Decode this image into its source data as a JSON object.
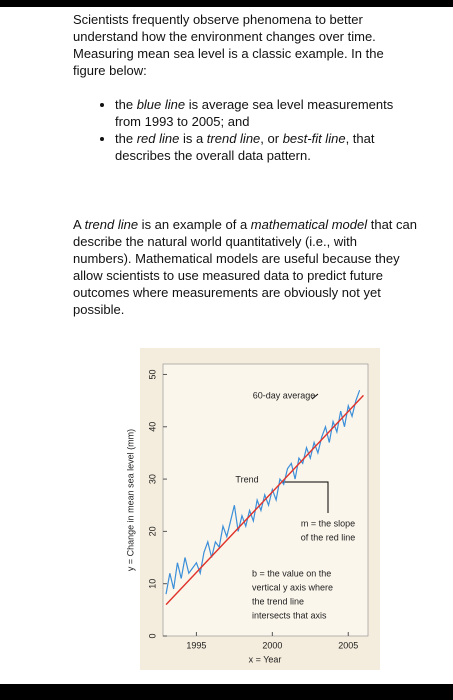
{
  "intro": [
    {
      "text": "Scientists frequently observe phenomena to better understand how the environment changes over time. Measuring mean sea level is a classic example. In the figure below:",
      "italic": false
    }
  ],
  "bullets": [
    [
      {
        "text": "the ",
        "italic": false
      },
      {
        "text": "blue line",
        "italic": true
      },
      {
        "text": " is average sea level measurements from 1993 to 2005; and",
        "italic": false
      }
    ],
    [
      {
        "text": "the ",
        "italic": false
      },
      {
        "text": "red line",
        "italic": true
      },
      {
        "text": " is a ",
        "italic": false
      },
      {
        "text": "trend line",
        "italic": true
      },
      {
        "text": ", or ",
        "italic": false
      },
      {
        "text": "best-fit line",
        "italic": true
      },
      {
        "text": ", that describes the overall data pattern.",
        "italic": false
      }
    ]
  ],
  "paragraph": [
    {
      "text": "A ",
      "italic": false
    },
    {
      "text": "trend line",
      "italic": true
    },
    {
      "text": " is an example of a ",
      "italic": false
    },
    {
      "text": "mathematical model",
      "italic": true
    },
    {
      "text": " that can describe the natural world quantitatively (i.e., with numbers). Mathematical models are useful because they allow scientists to use measured data to predict future outcomes where measurements are obviously not yet possible.",
      "italic": false
    }
  ],
  "chart_data": {
    "type": "line",
    "y_label": "y = Change in mean sea level (mm)",
    "x_label": "x = Year",
    "xlim": [
      1992.8,
      2006.3
    ],
    "xticks": [
      1995,
      2000,
      2005
    ],
    "ylim": [
      0,
      52
    ],
    "yticks": [
      0,
      10,
      20,
      30,
      40,
      50
    ],
    "series": [
      {
        "name": "60-day average",
        "color": "#3b8fd9",
        "x": [
          1993.0,
          1993.25,
          1993.5,
          1993.75,
          1994.0,
          1994.25,
          1994.5,
          1994.75,
          1995.0,
          1995.25,
          1995.5,
          1995.75,
          1996.0,
          1996.25,
          1996.5,
          1996.75,
          1997.0,
          1997.25,
          1997.5,
          1997.75,
          1998.0,
          1998.25,
          1998.5,
          1998.75,
          1999.0,
          1999.25,
          1999.5,
          1999.75,
          2000.0,
          2000.25,
          2000.5,
          2000.75,
          2001.0,
          2001.25,
          2001.5,
          2001.75,
          2002.0,
          2002.25,
          2002.5,
          2002.75,
          2003.0,
          2003.25,
          2003.5,
          2003.75,
          2004.0,
          2004.25,
          2004.5,
          2004.75,
          2005.0,
          2005.25,
          2005.5,
          2005.75
        ],
        "values": [
          8,
          12,
          9,
          14,
          11,
          15,
          12,
          13,
          14,
          12,
          16,
          18,
          15,
          18,
          17,
          21,
          19,
          22,
          25,
          20,
          23,
          21,
          24,
          22,
          26,
          24,
          27,
          25,
          28,
          26,
          30,
          29,
          32,
          33,
          30,
          34,
          33,
          36,
          34,
          37,
          35,
          38,
          40,
          37,
          41,
          39,
          43,
          40,
          44,
          42,
          45,
          47
        ]
      },
      {
        "name": "Trend",
        "color": "#e0332b",
        "x": [
          1993.0,
          2006.0
        ],
        "values": [
          6,
          46
        ]
      }
    ],
    "annotations": [
      "m = the slope",
      "of the red line",
      "b = the value on the",
      "vertical y axis where",
      "the trend line",
      "intersects that axis"
    ]
  }
}
